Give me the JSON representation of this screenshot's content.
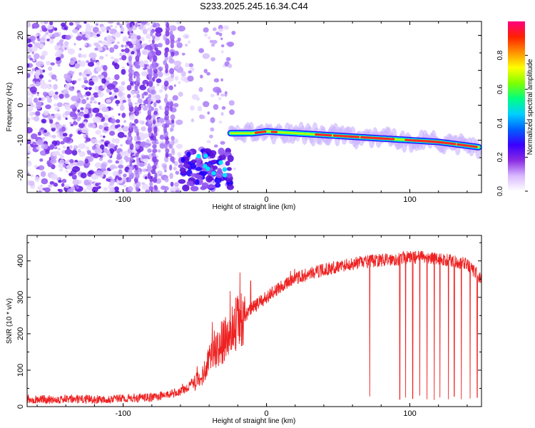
{
  "figure": {
    "title": "S233.2025.245.16.34.C44"
  },
  "chart_data": [
    {
      "type": "heatmap",
      "title": "S233.2025.245.16.34.C44",
      "xlabel": "Height of straight line (km)",
      "ylabel": "Frequency (Hz)",
      "xlim": [
        -167,
        150
      ],
      "ylim": [
        -25,
        24
      ],
      "x_ticks": [
        -100,
        0,
        100
      ],
      "y_ticks": [
        -20,
        -10,
        0,
        10,
        20
      ],
      "colorbar": {
        "label": "Normalized spectral amplitude",
        "range": [
          0,
          1
        ],
        "ticks": [
          0.0,
          0.2,
          0.4,
          0.6,
          0.8
        ],
        "colors": [
          "#ffffff",
          "#d8b8ff",
          "#8a2be2",
          "#3a00ff",
          "#0060ff",
          "#00d0ff",
          "#00ff80",
          "#80ff00",
          "#ffff00",
          "#ff9000",
          "#ff2000",
          "#ff0080"
        ]
      },
      "ridge": {
        "description": "dominant frequency band",
        "x": [
          -25,
          -10,
          0,
          20,
          40,
          60,
          80,
          100,
          120,
          148
        ],
        "y": [
          -8,
          -8,
          -7.5,
          -8,
          -8.5,
          -9,
          -9.5,
          -10,
          -10.5,
          -12
        ]
      },
      "blob_cluster": {
        "x_range": [
          -60,
          -25
        ],
        "y_range": [
          -24,
          -13
        ]
      }
    },
    {
      "type": "line",
      "xlabel": "Height of straight line (km)",
      "ylabel": "SNR (10 * v/v)",
      "xlim": [
        -167,
        150
      ],
      "ylim": [
        0,
        470
      ],
      "x_ticks": [
        -100,
        0,
        100
      ],
      "y_ticks": [
        0,
        100,
        200,
        300,
        400
      ],
      "line_color": "#ee2222",
      "trend": {
        "x": [
          -167,
          -120,
          -80,
          -60,
          -45,
          -40,
          -30,
          -20,
          -10,
          0,
          10,
          20,
          30,
          40,
          50,
          60,
          70,
          80,
          90,
          100,
          110,
          120,
          130,
          140,
          150
        ],
        "y": [
          20,
          20,
          25,
          40,
          80,
          140,
          180,
          230,
          270,
          300,
          330,
          350,
          365,
          375,
          385,
          392,
          398,
          402,
          405,
          410,
          410,
          405,
          400,
          390,
          350
        ]
      },
      "dips": [
        {
          "x": 72,
          "y": 28
        },
        {
          "x": 93,
          "y": 20
        },
        {
          "x": 97,
          "y": 25
        },
        {
          "x": 102,
          "y": 22
        },
        {
          "x": 107,
          "y": 30
        },
        {
          "x": 112,
          "y": 20
        },
        {
          "x": 117,
          "y": 18
        },
        {
          "x": 121,
          "y": 25
        },
        {
          "x": 127,
          "y": 20
        },
        {
          "x": 131,
          "y": 28
        },
        {
          "x": 136,
          "y": 20
        },
        {
          "x": 142,
          "y": 22
        },
        {
          "x": 147,
          "y": 25
        }
      ],
      "spikes": [
        {
          "x": -11,
          "y": 345
        }
      ]
    }
  ]
}
